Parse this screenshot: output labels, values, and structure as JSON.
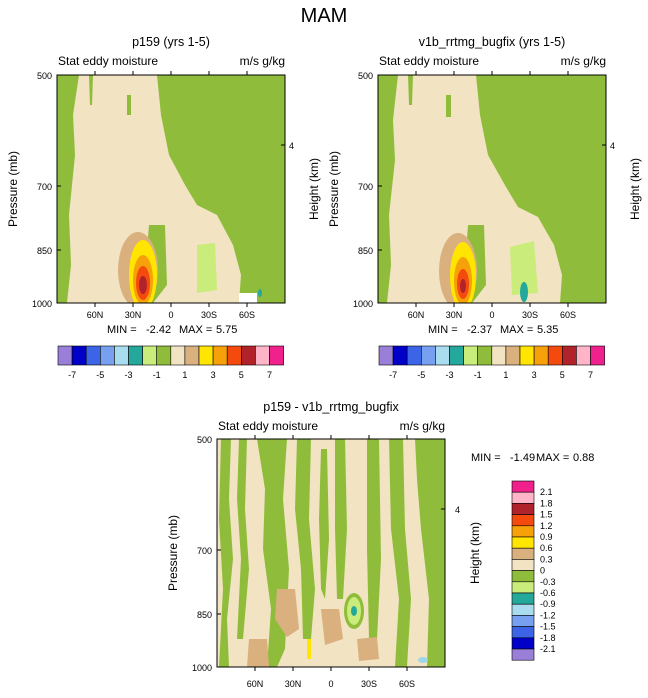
{
  "title": "MAM",
  "colors": {
    "tan": "#f2e3c2",
    "green": "#8fbd3b",
    "lightgreen": "#c9ec7a",
    "brown": "#d9b07e",
    "yellow": "#ffe500",
    "orange": "#f7a10a",
    "orangered": "#f44a0e",
    "darkred": "#b1232a",
    "teal": "#23a89b",
    "lightblue": "#9cd6ea"
  },
  "chart_data": [
    {
      "type": "contour",
      "panel_title": "p159 (yrs 1-5)",
      "left_label": "Stat eddy moisture",
      "right_label": "m/s g/kg",
      "ylabel": "Pressure (mb)",
      "y2label": "Height (km)",
      "yticks": [
        "500",
        "700",
        "850",
        "1000"
      ],
      "y2ticks": [
        "4"
      ],
      "xticks": [
        "60N",
        "30N",
        "0",
        "30S",
        "60S"
      ],
      "x_range": [
        "90N",
        "90S"
      ],
      "y_range": [
        1000,
        500
      ],
      "stats": {
        "min_label": "MIN =",
        "min": "-2.42",
        "max_label": "MAX =",
        "max": "5.75"
      },
      "maximum_center": {
        "lat": "25N",
        "pressure": 930,
        "value": 5.75
      }
    },
    {
      "type": "contour",
      "panel_title": "v1b_rrtmg_bugfix (yrs 1-5)",
      "left_label": "Stat eddy moisture",
      "right_label": "m/s g/kg",
      "ylabel": "Pressure (mb)",
      "y2label": "Height (km)",
      "yticks": [
        "500",
        "700",
        "850",
        "1000"
      ],
      "y2ticks": [
        "4"
      ],
      "xticks": [
        "60N",
        "30N",
        "0",
        "30S",
        "60S"
      ],
      "x_range": [
        "90N",
        "90S"
      ],
      "y_range": [
        1000,
        500
      ],
      "stats": {
        "min_label": "MIN =",
        "min": "-2.37",
        "max_label": "MAX =",
        "max": "5.35"
      },
      "maximum_center": {
        "lat": "25N",
        "pressure": 930,
        "value": 5.35
      }
    },
    {
      "type": "contour",
      "panel_title": "p159 - v1b_rrtmg_bugfix",
      "left_label": "Stat eddy moisture",
      "right_label": "m/s g/kg",
      "ylabel": "Pressure (mb)",
      "y2label": "Height (km)",
      "yticks": [
        "500",
        "700",
        "850",
        "1000"
      ],
      "y2ticks": [
        "4"
      ],
      "xticks": [
        "60N",
        "30N",
        "0",
        "30S",
        "60S"
      ],
      "x_range": [
        "90N",
        "90S"
      ],
      "y_range": [
        1000,
        500
      ],
      "stats": {
        "min_label": "MIN =",
        "min": "-1.49",
        "max_label": "MAX =",
        "max": "0.88"
      }
    }
  ],
  "colorbar_top": {
    "colors": [
      "#9a7fd9",
      "#0000c8",
      "#3c64e6",
      "#78a0f0",
      "#aadcf0",
      "#23a89b",
      "#c9ec7a",
      "#8fbd3b",
      "#f2e3c2",
      "#d9b07e",
      "#ffe500",
      "#f7a10a",
      "#f44a0e",
      "#b1232a",
      "#ffb4c8",
      "#f0208c"
    ],
    "labels": [
      "-7",
      "-5",
      "-3",
      "-1",
      "1",
      "3",
      "5",
      "7"
    ]
  },
  "colorbar_diff": {
    "colors_top_to_bottom": [
      "#f0208c",
      "#ffb4c8",
      "#b1232a",
      "#f44a0e",
      "#f7a10a",
      "#ffe500",
      "#d9b07e",
      "#f2e3c2",
      "#8fbd3b",
      "#c9ec7a",
      "#23a89b",
      "#aadcf0",
      "#78a0f0",
      "#3c64e6",
      "#0000c8",
      "#9a7fd9"
    ],
    "labels_top_to_bottom": [
      "2.1",
      "1.8",
      "1.5",
      "1.2",
      "0.9",
      "0.6",
      "0.3",
      "0",
      "-0.3",
      "-0.6",
      "-0.9",
      "-1.2",
      "-1.5",
      "-1.8",
      "-2.1"
    ]
  }
}
